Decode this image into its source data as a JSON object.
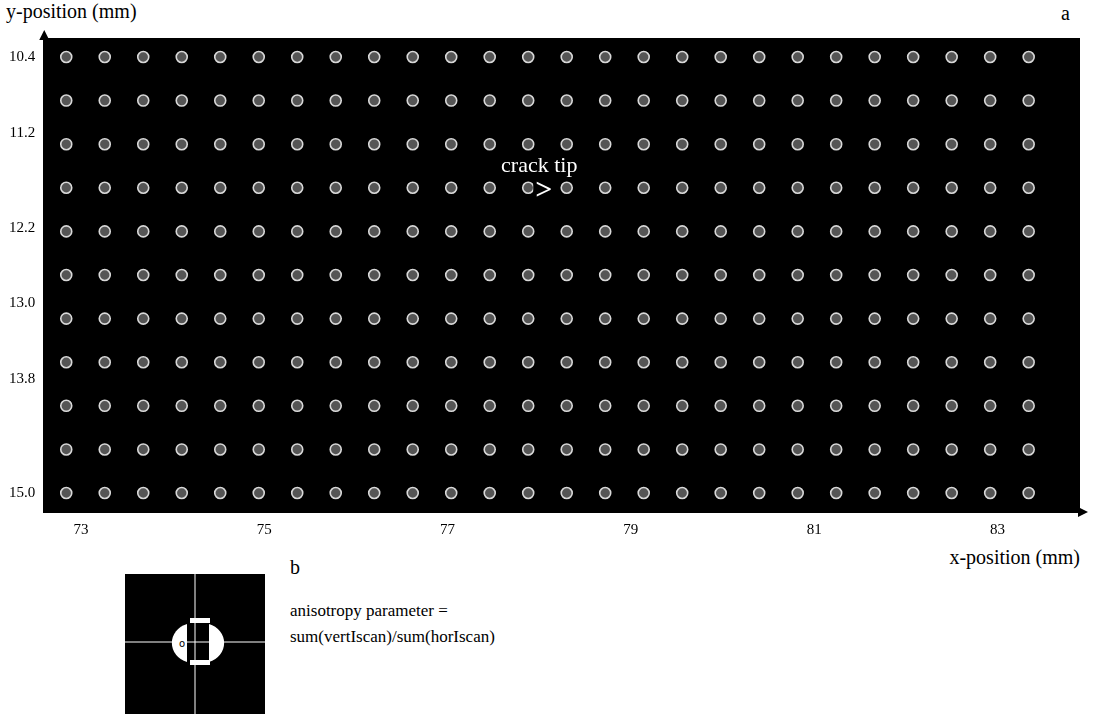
{
  "chart_data": {
    "type": "scatter",
    "panel_label": "a",
    "x_label": "x-position (mm)",
    "y_label": "y-position (mm)",
    "grid_points": {
      "x": [
        72.84,
        73.26,
        73.68,
        74.1,
        74.52,
        74.94,
        75.36,
        75.78,
        76.2,
        76.62,
        77.04,
        77.46,
        77.88,
        78.3,
        78.72,
        79.14,
        79.56,
        79.98,
        80.4,
        80.82,
        81.24,
        81.66,
        82.08,
        82.5,
        82.92,
        83.34
      ],
      "y": [
        10.4,
        10.86,
        11.32,
        11.78,
        12.24,
        12.7,
        13.16,
        13.62,
        14.08,
        14.54,
        15.0
      ]
    },
    "color": "#d8d8d8",
    "marker": "circle",
    "xlim": [
      72.6,
      83.9
    ],
    "ylim": [
      10.2,
      15.2
    ],
    "xticks": [
      73,
      75,
      77,
      79,
      81,
      83
    ],
    "yticks": [
      10.4,
      11.2,
      12.2,
      {
        "value": 13,
        "label": "13.0"
      },
      13.8,
      {
        "value": 15,
        "label": "15.0"
      }
    ],
    "grid": false,
    "annotations": [
      {
        "text": "crack tip",
        "x": 78.0,
        "y": 11.55
      },
      {
        "text": ">",
        "x": 78.05,
        "y": 11.82
      }
    ],
    "inset": {
      "panel_label": "b",
      "text_lines": [
        "anisotropy parameter =",
        "sum(vertIscan)/sum(horIscan)"
      ]
    }
  }
}
